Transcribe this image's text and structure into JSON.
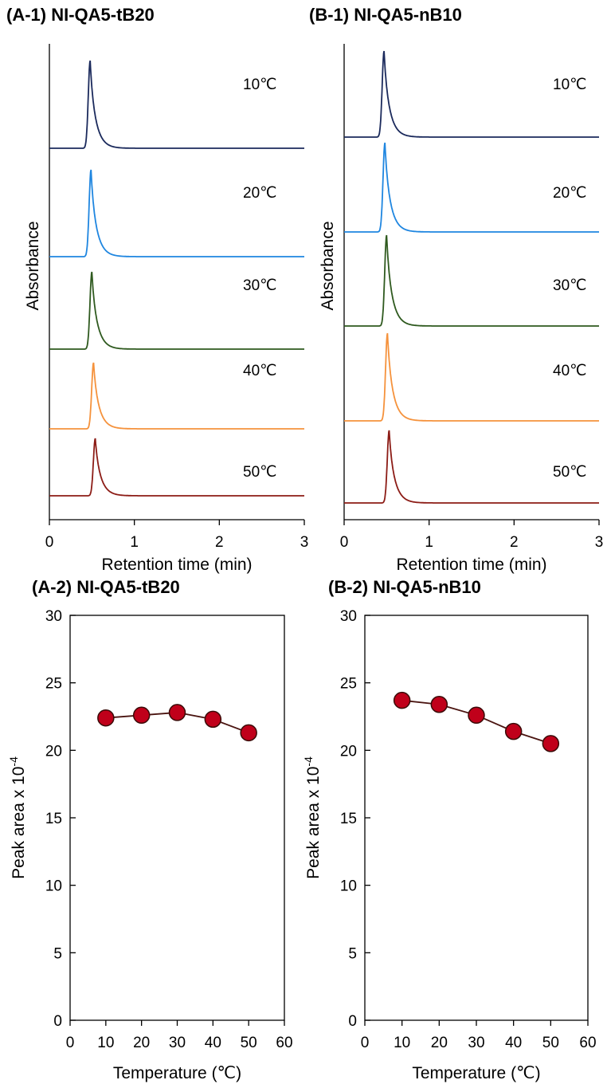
{
  "chart_data": [
    {
      "type": "line",
      "title": "(A-1) NI-QA5-tB20",
      "xlabel": "Retention time (min)",
      "ylabel": "Absorbance",
      "xlim": [
        0,
        3
      ],
      "xticks": [
        "0",
        "1",
        "2",
        "3"
      ],
      "series": [
        {
          "name": "10℃",
          "peak_time": 0.48,
          "color": "#1b2a5c"
        },
        {
          "name": "20℃",
          "peak_time": 0.49,
          "color": "#1f86e0"
        },
        {
          "name": "30℃",
          "peak_time": 0.5,
          "color": "#2f5a1f"
        },
        {
          "name": "40℃",
          "peak_time": 0.52,
          "color": "#f5923c"
        },
        {
          "name": "50℃",
          "peak_time": 0.54,
          "color": "#8c1c16"
        }
      ]
    },
    {
      "type": "line",
      "title": "(B-1) NI-QA5-nB10",
      "xlabel": "Retention time (min)",
      "ylabel": "Absorbance",
      "xlim": [
        0,
        3
      ],
      "xticks": [
        "0",
        "1",
        "2",
        "3"
      ],
      "series": [
        {
          "name": "10℃",
          "peak_time": 0.47,
          "color": "#1b2a5c"
        },
        {
          "name": "20℃",
          "peak_time": 0.48,
          "color": "#1f86e0"
        },
        {
          "name": "30℃",
          "peak_time": 0.5,
          "color": "#2f5a1f"
        },
        {
          "name": "40℃",
          "peak_time": 0.51,
          "color": "#f5923c"
        },
        {
          "name": "50℃",
          "peak_time": 0.53,
          "color": "#8c1c16"
        }
      ]
    },
    {
      "type": "line",
      "title": "(A-2) NI-QA5-tB20",
      "xlabel": "Temperature (℃)",
      "ylabel": "Peak area x 10",
      "ylabel_exp": "-4",
      "xlim": [
        0,
        60
      ],
      "ylim": [
        0,
        30
      ],
      "xticks": [
        "0",
        "10",
        "20",
        "30",
        "40",
        "50",
        "60"
      ],
      "yticks": [
        "0",
        "5",
        "10",
        "15",
        "20",
        "25",
        "30"
      ],
      "x": [
        10,
        20,
        30,
        40,
        50
      ],
      "values": [
        22.4,
        22.6,
        22.8,
        22.3,
        21.3
      ],
      "marker_color": "#c0001a"
    },
    {
      "type": "line",
      "title": "(B-2) NI-QA5-nB10",
      "xlabel": "Temperature (℃)",
      "ylabel": "Peak area x 10",
      "ylabel_exp": "-4",
      "xlim": [
        0,
        60
      ],
      "ylim": [
        0,
        30
      ],
      "xticks": [
        "0",
        "10",
        "20",
        "30",
        "40",
        "50",
        "60"
      ],
      "yticks": [
        "0",
        "5",
        "10",
        "15",
        "20",
        "25",
        "30"
      ],
      "x": [
        10,
        20,
        30,
        40,
        50
      ],
      "values": [
        23.7,
        23.4,
        22.6,
        21.4,
        20.5
      ],
      "marker_color": "#c0001a"
    }
  ]
}
